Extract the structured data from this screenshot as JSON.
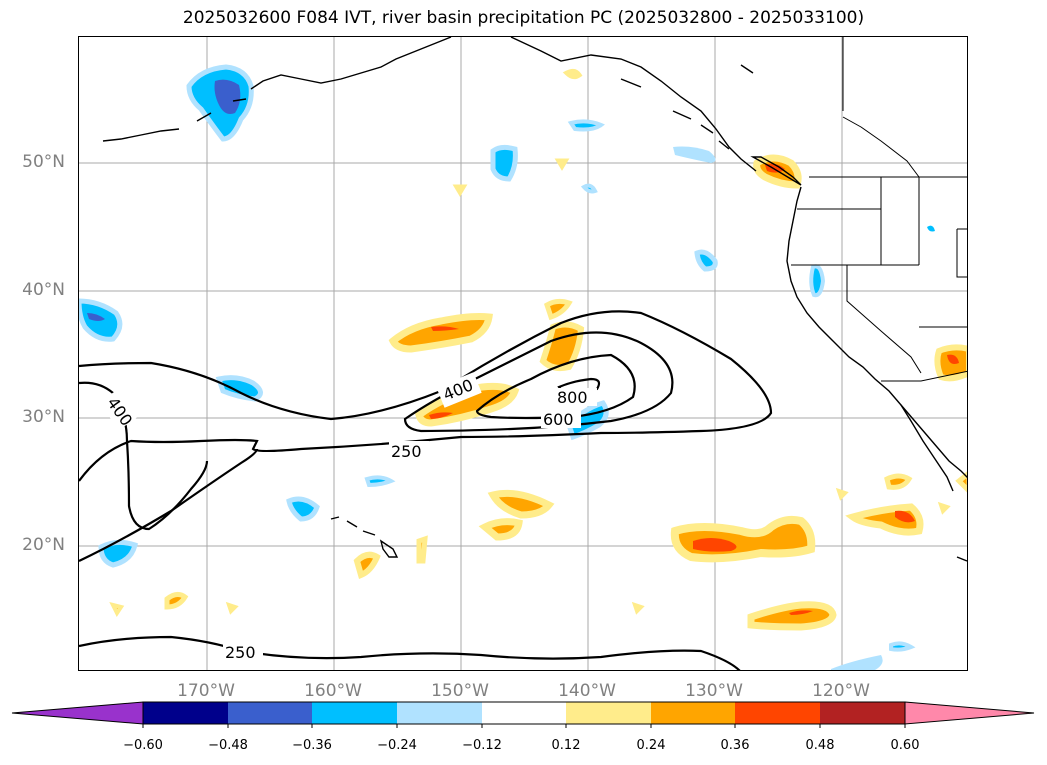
{
  "title": "2025032600 F084 IVT, river basin precipitation PC (2025032800 - 2025033100)",
  "lat_labels": [
    "50°N",
    "40°N",
    "30°N",
    "20°N"
  ],
  "lon_labels": [
    "170°W",
    "160°W",
    "150°W",
    "140°W",
    "130°W",
    "120°W"
  ],
  "ivt_contour_labels": [
    "400",
    "400",
    "800",
    "600",
    "250",
    "250"
  ],
  "colorbar": {
    "ticks": [
      "−0.60",
      "−0.48",
      "−0.36",
      "−0.24",
      "−0.12",
      "0.12",
      "0.24",
      "0.36",
      "0.48",
      "0.60"
    ],
    "colors": [
      "#9932cc",
      "#00008b",
      "#3a5fcd",
      "#00bfff",
      "#b0e2ff",
      "#ffffff",
      "#ffec8b",
      "#ffa500",
      "#ff4500",
      "#b22222",
      "#ff88aa"
    ]
  },
  "colors": {
    "land_lines": "#000000",
    "grid": "#a9a9a9",
    "tick_text": "#808080"
  }
}
